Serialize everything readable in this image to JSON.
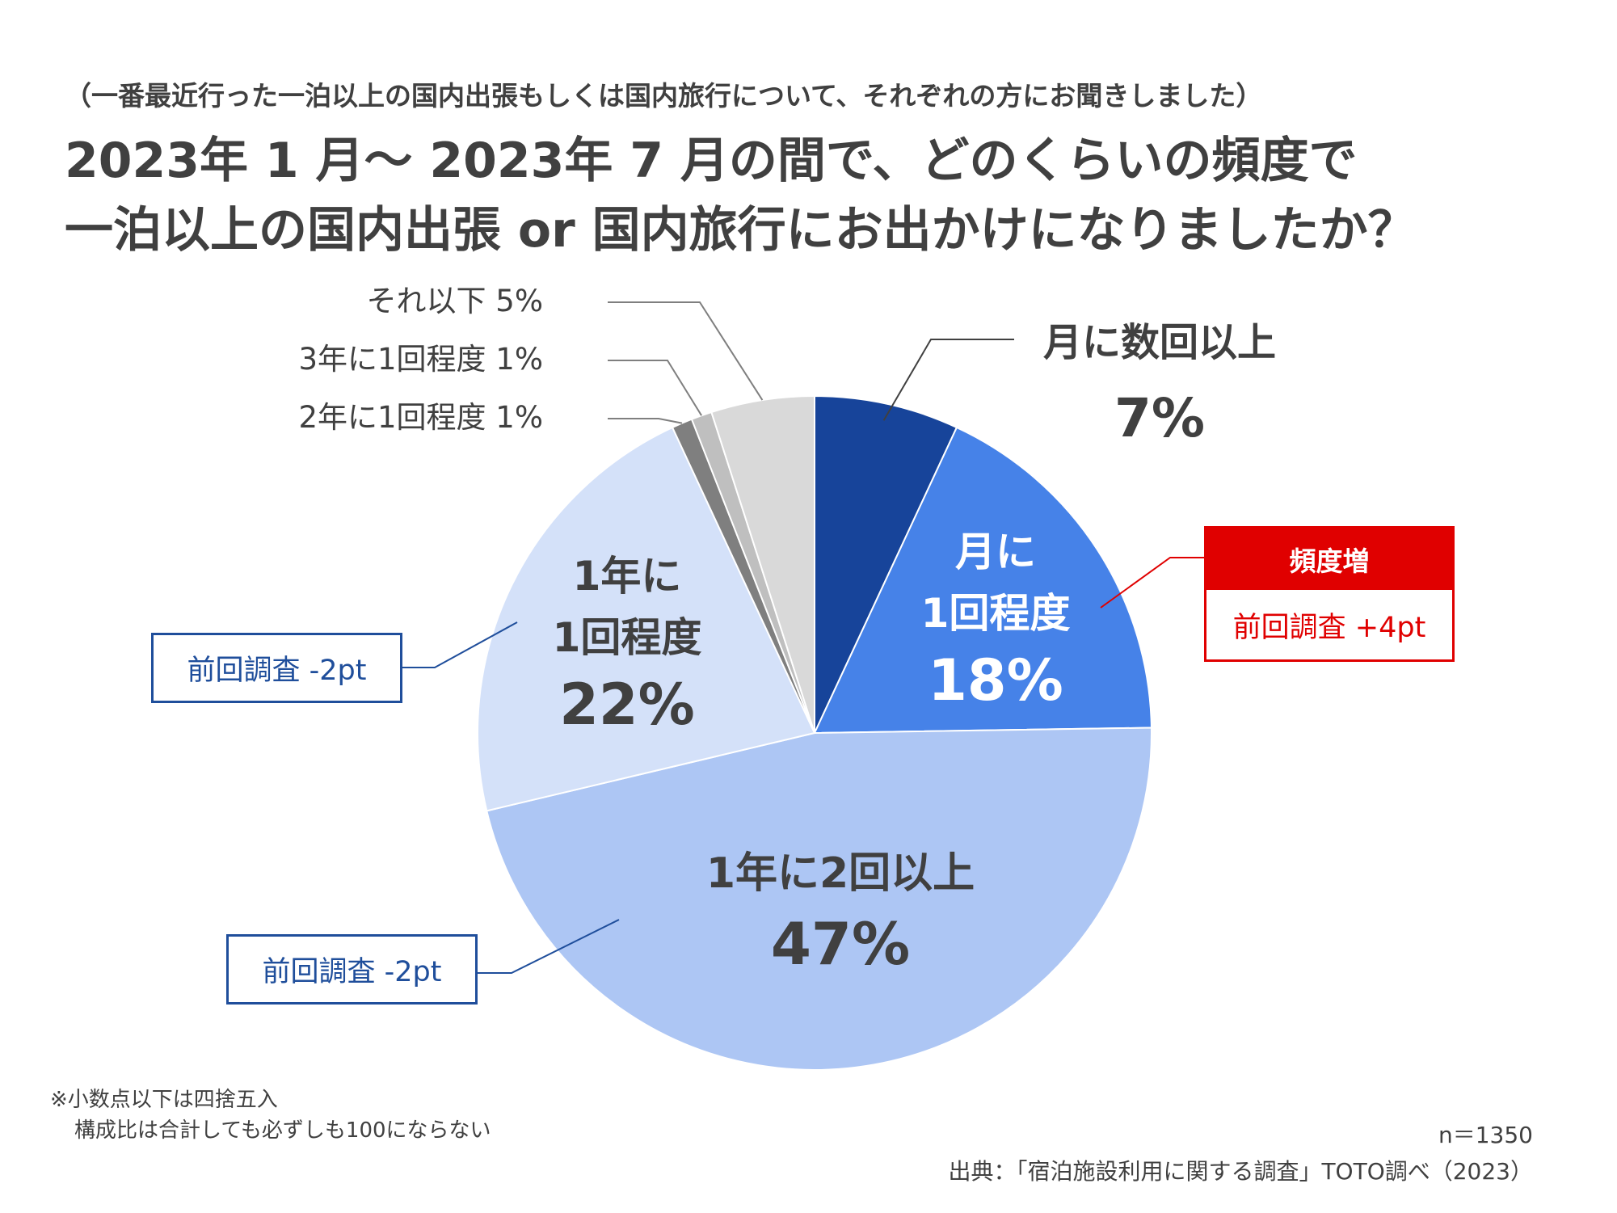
{
  "header": {
    "subtitle": "（一番最近行った一泊以上の国内出張もしくは国内旅行について、それぞれの方にお聞きしました）",
    "title_line1": "2023年 1 月～ 2023年 7 月の間で、どのくらいの頻度で",
    "title_line2": "一泊以上の国内出張 or 国内旅行にお出かけになりましたか？"
  },
  "chart_data": {
    "type": "pie",
    "start_angle": "12 o'clock, clockwise",
    "slices": [
      {
        "label": "月に数回以上",
        "value": 7,
        "value_label": "7%",
        "color": "#17449a"
      },
      {
        "label": "月に1回程度",
        "value": 18,
        "value_label": "18%",
        "color": "#4682e8"
      },
      {
        "label": "1年に2回以上",
        "value": 47,
        "value_label": "47%",
        "color": "#adc6f4"
      },
      {
        "label": "1年に1回程度",
        "value": 22,
        "value_label": "22%",
        "color": "#d4e1f9"
      },
      {
        "label": "2年に1回程度",
        "value": 1,
        "value_label": "1%",
        "color": "#7f7f7f"
      },
      {
        "label": "3年に1回程度",
        "value": 1,
        "value_label": "1%",
        "color": "#bfbfbf"
      },
      {
        "label": "それ以下",
        "value": 5,
        "value_label": "5%",
        "color": "#d9d9d9"
      }
    ],
    "inner_labels": {
      "monthly_once": [
        "月に",
        "1回程度"
      ],
      "yearly_twice": [
        "1年に2回以上"
      ],
      "yearly_once": [
        "1年に",
        "1回程度"
      ]
    },
    "outer_labels": {
      "monthly_many": "月に数回以上",
      "below": "それ以下",
      "every3": "3年に1回程度",
      "every2": "2年に1回程度"
    }
  },
  "callouts": {
    "frequency_up": {
      "header": "頻度増",
      "body": "前回調査 +4pt"
    },
    "yearly_once_change": "前回調査 -2pt",
    "yearly_twice_change": "前回調査 -2pt"
  },
  "footer": {
    "note_line1": "※小数点以下は四捨五入",
    "note_line2": "構成比は合計しても必ずしも100にならない",
    "sample": "n＝1350",
    "source": "出典：「宿泊施設利用に関する調査」TOTO調べ（2023）"
  }
}
